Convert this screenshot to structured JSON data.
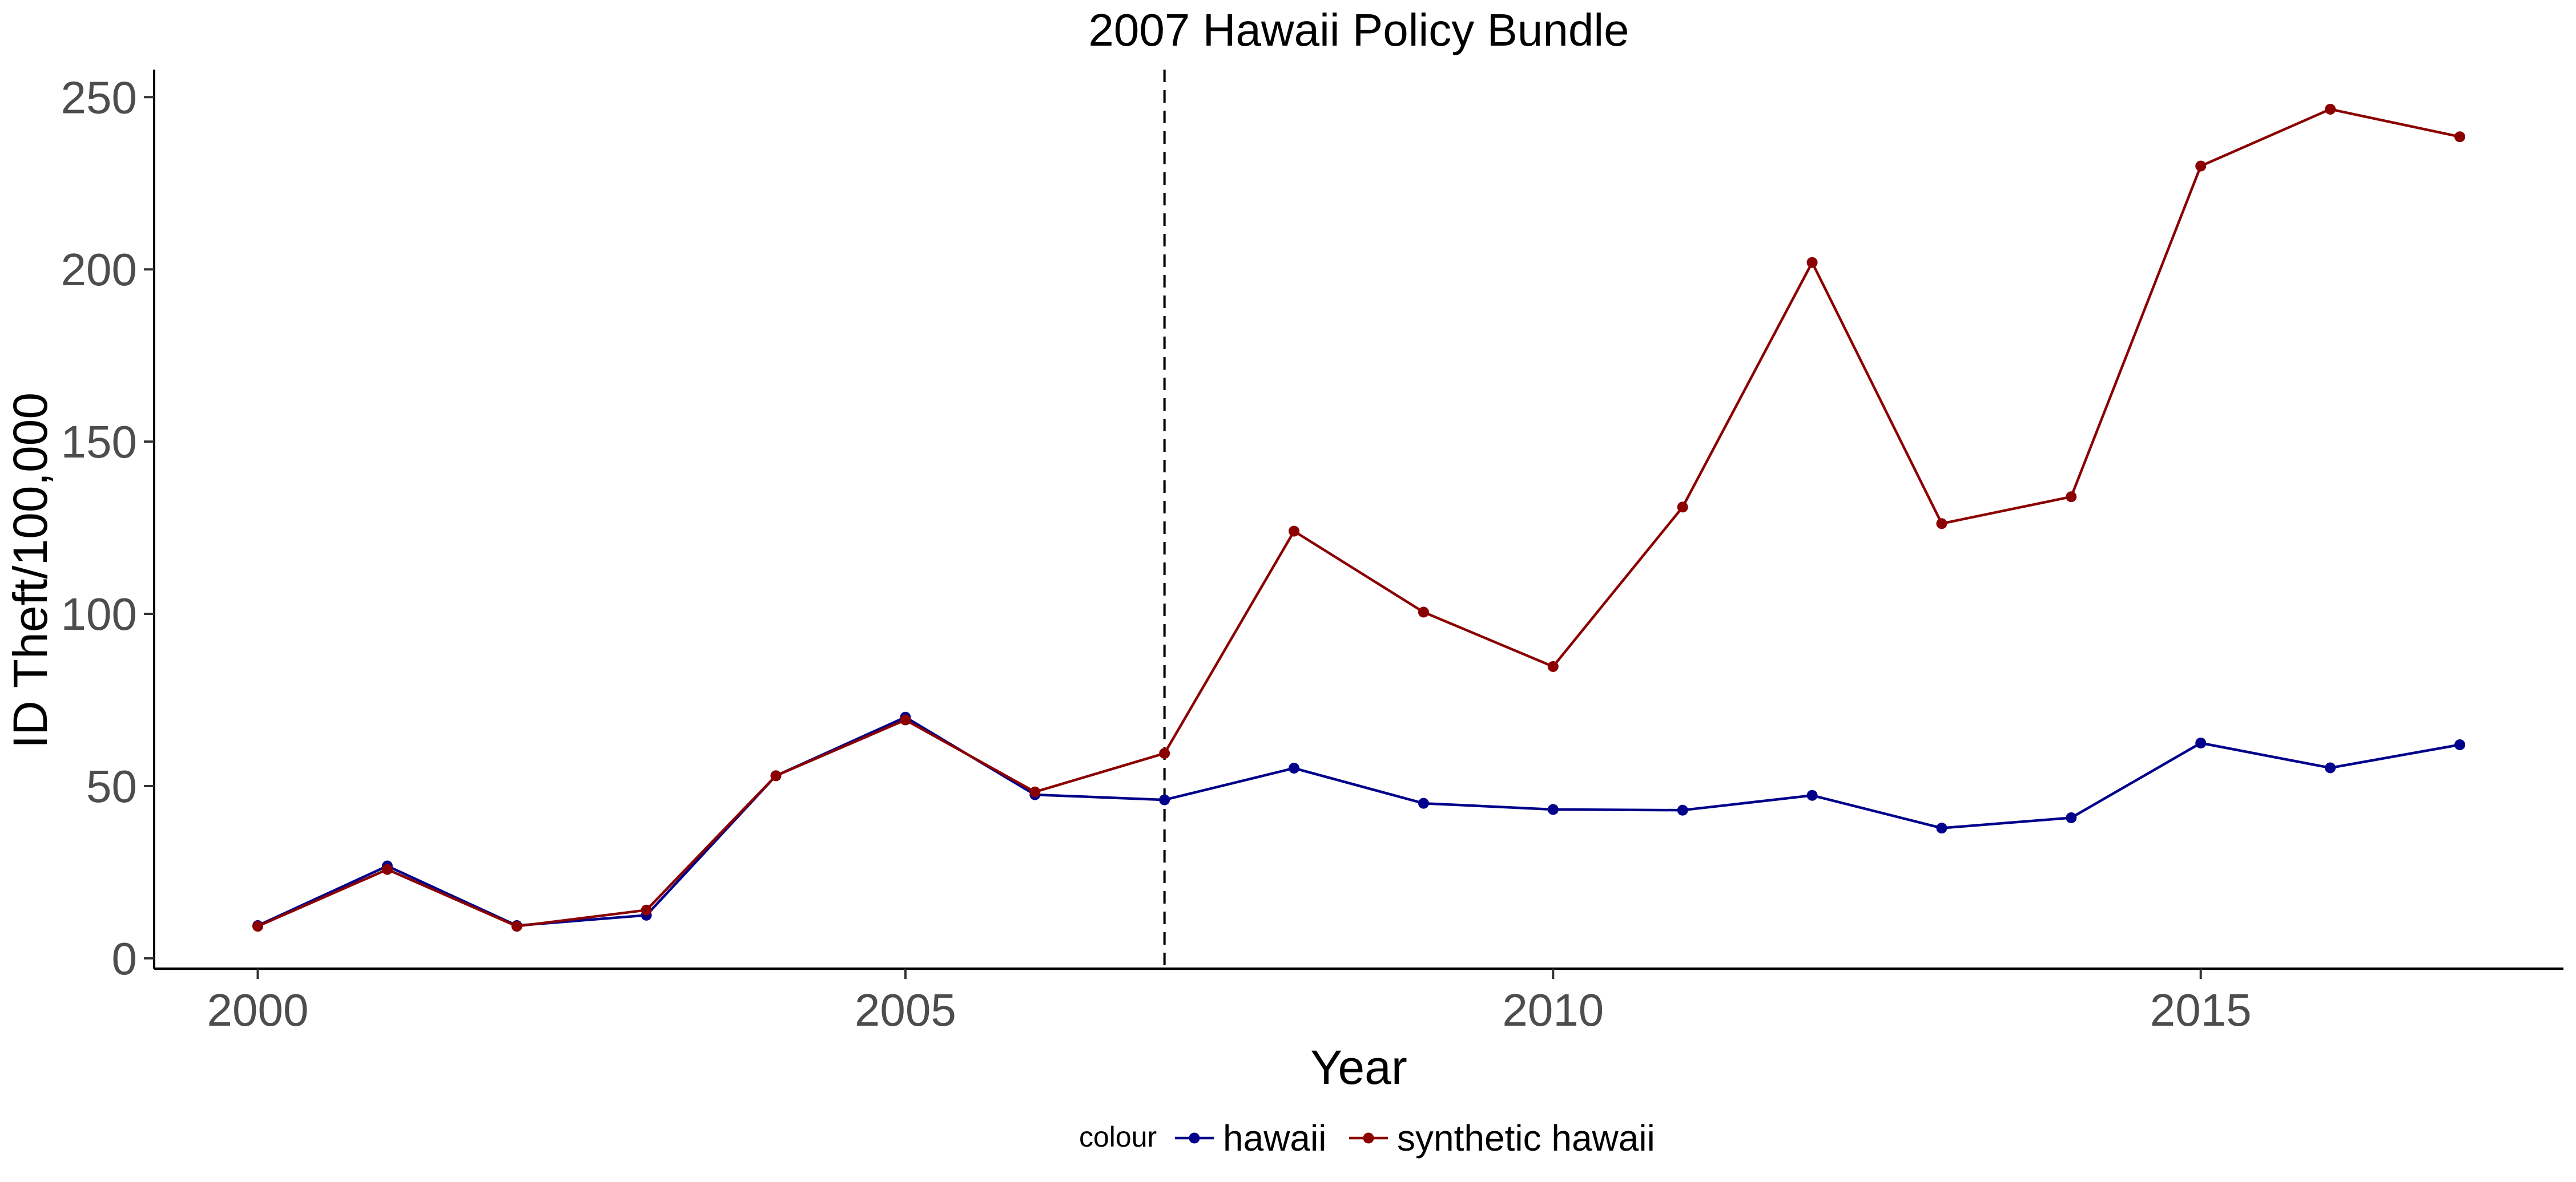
{
  "chart_data": {
    "type": "line",
    "title": "2007 Hawaii Policy Bundle",
    "xlabel": "Year",
    "ylabel": "ID Theft/100,000",
    "x": [
      2000,
      2001,
      2002,
      2003,
      2004,
      2005,
      2006,
      2007,
      2008,
      2009,
      2010,
      2011,
      2012,
      2013,
      2014,
      2015,
      2016,
      2017
    ],
    "xlim": [
      1999.2,
      2017.8
    ],
    "ylim": [
      -3,
      258
    ],
    "x_ticks": [
      2000,
      2005,
      2010,
      2015
    ],
    "y_ticks": [
      0,
      50,
      100,
      150,
      200,
      250
    ],
    "grid": false,
    "vline": {
      "x": 2007,
      "style": "dashed",
      "color": "#000000"
    },
    "legend": {
      "title": "colour",
      "position": "bottom"
    },
    "series": [
      {
        "name": "hawaii",
        "color": "#00008B",
        "values": [
          9.5,
          26.8,
          9.5,
          12.5,
          53.0,
          70.0,
          47.5,
          46.0,
          55.2,
          45.0,
          43.2,
          43.0,
          47.3,
          37.8,
          40.8,
          62.5,
          55.3,
          62.0
        ]
      },
      {
        "name": "synthetic hawaii",
        "color": "#8B0000",
        "values": [
          9.3,
          25.8,
          9.3,
          14.0,
          53.0,
          69.2,
          48.3,
          59.5,
          124.0,
          100.5,
          84.7,
          131.0,
          202.0,
          126.2,
          134.0,
          230.0,
          246.5,
          238.5
        ]
      }
    ]
  }
}
